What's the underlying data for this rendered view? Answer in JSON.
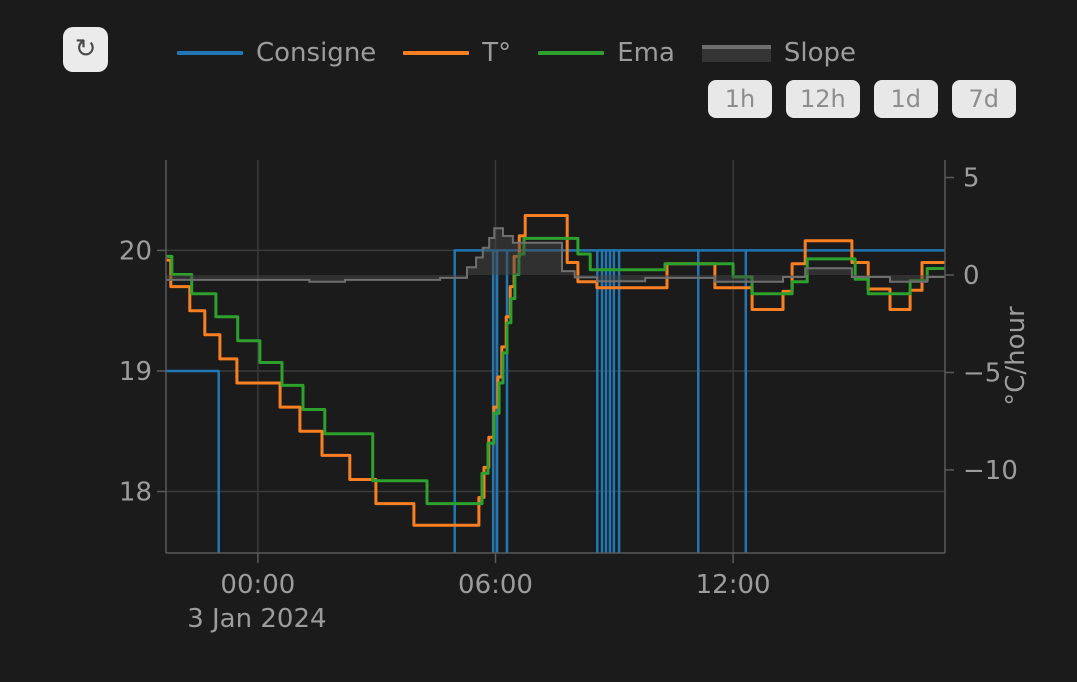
{
  "toolbar": {
    "refresh_icon": "↻"
  },
  "legend": [
    {
      "label": "Consigne",
      "type": "line",
      "color": "#2077b4"
    },
    {
      "label": "T°",
      "type": "line",
      "color": "#f88023"
    },
    {
      "label": "Ema",
      "type": "line",
      "color": "#2da02d"
    },
    {
      "label": "Slope",
      "type": "area",
      "color": "#6f6f6f",
      "fill": "#353535"
    }
  ],
  "time_range_buttons": [
    "1h",
    "12h",
    "1d",
    "7d"
  ],
  "chart_data": {
    "type": "line",
    "title": "",
    "grid": true,
    "x_axis": {
      "range_hours": [
        -2.32,
        17.35
      ],
      "ticks": [
        {
          "h": 0,
          "label": "00:00"
        },
        {
          "h": 6,
          "label": "06:00"
        },
        {
          "h": 12,
          "label": "12:00"
        }
      ],
      "date_label": "3 Jan 2024"
    },
    "y_axis_left": {
      "unit": "°C",
      "range": [
        17.49,
        20.75
      ],
      "ticks": [
        {
          "v": 20,
          "label": "20"
        },
        {
          "v": 19,
          "label": "19"
        },
        {
          "v": 18,
          "label": "18"
        }
      ]
    },
    "y_axis_right": {
      "title": "°C/hour",
      "range": [
        -14.26,
        5.9
      ],
      "ticks": [
        {
          "v": 5,
          "label": "5"
        },
        {
          "v": 0,
          "label": "0"
        },
        {
          "v": -5,
          "label": "−5"
        },
        {
          "v": -10,
          "label": "−10"
        }
      ]
    },
    "series": [
      {
        "name": "Consigne",
        "axis": "left",
        "style": "step-line",
        "color": "#2077b4",
        "width": 2.5,
        "end_h": 17.35,
        "steps": [
          [
            -2.32,
            19
          ],
          [
            -0.99,
            17
          ],
          [
            4.97,
            20
          ]
        ],
        "dip_spikes_h": [
          5.94,
          6.04,
          6.29,
          8.57,
          8.69,
          8.79,
          8.89,
          8.99,
          9.12,
          11.12,
          12.32
        ]
      },
      {
        "name": "T°",
        "axis": "left",
        "style": "step-line",
        "color": "#f88023",
        "width": 3,
        "end_h": 17.35,
        "steps": [
          [
            -2.32,
            19.92
          ],
          [
            -2.2,
            19.7
          ],
          [
            -1.72,
            19.5
          ],
          [
            -1.34,
            19.3
          ],
          [
            -0.96,
            19.1
          ],
          [
            -0.53,
            18.9
          ],
          [
            0.56,
            18.7
          ],
          [
            1.06,
            18.5
          ],
          [
            1.62,
            18.3
          ],
          [
            2.32,
            18.1
          ],
          [
            2.98,
            17.9
          ],
          [
            3.94,
            17.72
          ],
          [
            5.58,
            17.95
          ],
          [
            5.71,
            18.2
          ],
          [
            5.83,
            18.45
          ],
          [
            5.96,
            18.7
          ],
          [
            6.06,
            18.95
          ],
          [
            6.16,
            19.2
          ],
          [
            6.27,
            19.45
          ],
          [
            6.37,
            19.7
          ],
          [
            6.47,
            19.95
          ],
          [
            6.6,
            20.12
          ],
          [
            6.75,
            20.29
          ],
          [
            7.81,
            19.9
          ],
          [
            8.08,
            19.74
          ],
          [
            8.56,
            19.69
          ],
          [
            10.33,
            19.89
          ],
          [
            11.54,
            19.69
          ],
          [
            12.48,
            19.51
          ],
          [
            13.26,
            19.66
          ],
          [
            13.49,
            19.89
          ],
          [
            13.82,
            20.08
          ],
          [
            15.0,
            19.9
          ],
          [
            15.41,
            19.68
          ],
          [
            15.96,
            19.51
          ],
          [
            16.47,
            19.67
          ],
          [
            16.77,
            19.9
          ]
        ]
      },
      {
        "name": "Ema",
        "axis": "left",
        "style": "step-line",
        "color": "#2da02d",
        "width": 3,
        "end_h": 17.35,
        "steps": [
          [
            -2.32,
            19.95
          ],
          [
            -2.17,
            19.8
          ],
          [
            -1.67,
            19.64
          ],
          [
            -1.06,
            19.45
          ],
          [
            -0.51,
            19.25
          ],
          [
            0.05,
            19.07
          ],
          [
            0.61,
            18.88
          ],
          [
            1.14,
            18.68
          ],
          [
            1.69,
            18.48
          ],
          [
            2.9,
            18.09
          ],
          [
            4.27,
            17.9
          ],
          [
            5.66,
            18.15
          ],
          [
            5.81,
            18.4
          ],
          [
            5.96,
            18.65
          ],
          [
            6.09,
            18.9
          ],
          [
            6.19,
            19.15
          ],
          [
            6.29,
            19.4
          ],
          [
            6.39,
            19.6
          ],
          [
            6.49,
            19.8
          ],
          [
            6.59,
            19.97
          ],
          [
            6.72,
            20.1
          ],
          [
            8.08,
            19.97
          ],
          [
            8.39,
            19.84
          ],
          [
            10.28,
            19.89
          ],
          [
            12.0,
            19.78
          ],
          [
            12.48,
            19.64
          ],
          [
            13.49,
            19.74
          ],
          [
            13.87,
            19.93
          ],
          [
            15.08,
            19.76
          ],
          [
            15.41,
            19.64
          ],
          [
            16.47,
            19.75
          ],
          [
            16.9,
            19.85
          ]
        ]
      },
      {
        "name": "Slope",
        "axis": "right",
        "style": "step-area",
        "color": "#6f6f6f",
        "width": 2,
        "fill": "#454545",
        "fill_opacity": 0.5,
        "baseline": 0,
        "end_h": 17.35,
        "steps": [
          [
            -2.32,
            -0.25
          ],
          [
            1.3,
            -0.35
          ],
          [
            2.2,
            -0.25
          ],
          [
            4.6,
            -0.15
          ],
          [
            5.28,
            0.4
          ],
          [
            5.51,
            0.9
          ],
          [
            5.68,
            1.4
          ],
          [
            5.84,
            1.9
          ],
          [
            5.97,
            2.4
          ],
          [
            6.19,
            2.0
          ],
          [
            6.44,
            1.65
          ],
          [
            7.68,
            0.2
          ],
          [
            8.0,
            -0.12
          ],
          [
            8.57,
            -0.32
          ],
          [
            9.78,
            -0.15
          ],
          [
            11.54,
            -0.35
          ],
          [
            13.26,
            -0.1
          ],
          [
            13.82,
            0.35
          ],
          [
            15.0,
            -0.1
          ],
          [
            15.96,
            -0.35
          ],
          [
            16.9,
            -0.1
          ]
        ]
      }
    ]
  }
}
